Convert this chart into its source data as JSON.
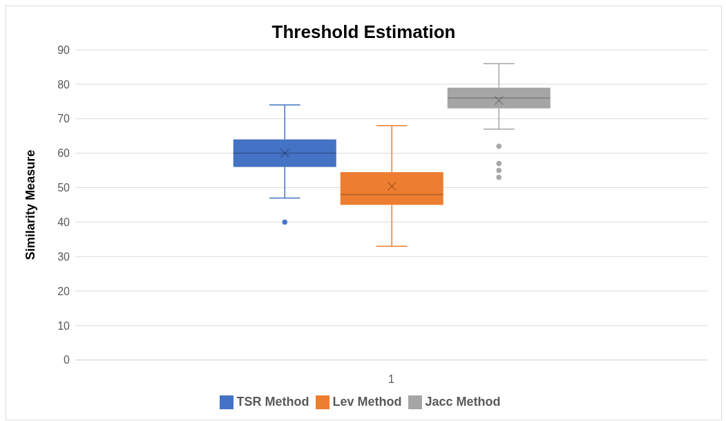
{
  "chart_data": {
    "type": "box",
    "title": "Threshold Estimation",
    "ylabel": "Similarity Measure",
    "categories": [
      "1"
    ],
    "ylim": [
      0,
      90
    ],
    "yticks": [
      0,
      10,
      20,
      30,
      40,
      50,
      60,
      70,
      80,
      90
    ],
    "grid": "y",
    "legend": "bottom",
    "series": [
      {
        "name": "TSR Method",
        "color": "#4472c4",
        "boxes": [
          {
            "low": 47,
            "q1": 56,
            "median": 60,
            "q3": 64,
            "high": 74,
            "mean": 60,
            "outliers": [
              40
            ]
          }
        ]
      },
      {
        "name": "Lev Method",
        "color": "#ed7d31",
        "boxes": [
          {
            "low": 33,
            "q1": 45,
            "median": 48,
            "q3": 54.5,
            "high": 68,
            "mean": 50.4
          }
        ]
      },
      {
        "name": "Jacc Method",
        "color": "#a5a5a5",
        "boxes": [
          {
            "low": 67,
            "q1": 73,
            "median": 76,
            "q3": 79,
            "high": 86,
            "mean": 75.3,
            "outliers": [
              62,
              57,
              55,
              53
            ]
          }
        ]
      }
    ]
  }
}
